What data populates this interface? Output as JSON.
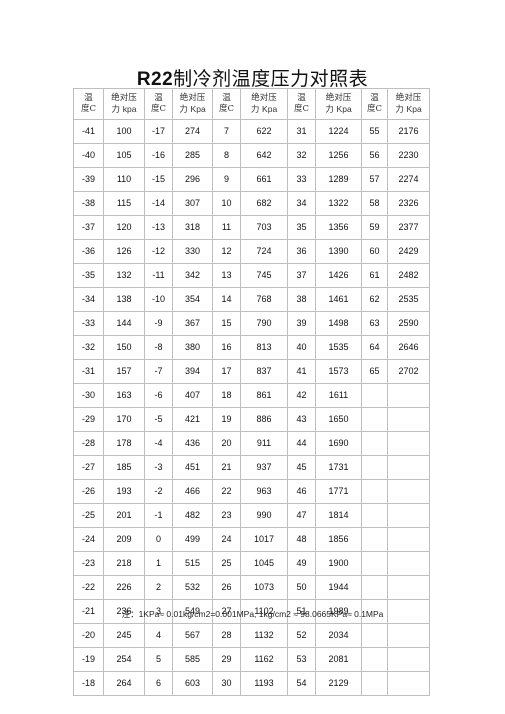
{
  "title_main": "R22",
  "title_rest": "制冷剂温度压力对照表",
  "headers": {
    "temp_l1": "温",
    "temp_l2": "度",
    "temp_unit": "C",
    "press_l1": "绝对压",
    "press_l2": "力",
    "press_unit_lower": "kpa",
    "press_unit": "Kpa"
  },
  "rows": [
    [
      "-41",
      "100",
      "-17",
      "274",
      "7",
      "622",
      "31",
      "1224",
      "55",
      "2176"
    ],
    [
      "-40",
      "105",
      "-16",
      "285",
      "8",
      "642",
      "32",
      "1256",
      "56",
      "2230"
    ],
    [
      "-39",
      "110",
      "-15",
      "296",
      "9",
      "661",
      "33",
      "1289",
      "57",
      "2274"
    ],
    [
      "-38",
      "115",
      "-14",
      "307",
      "10",
      "682",
      "34",
      "1322",
      "58",
      "2326"
    ],
    [
      "-37",
      "120",
      "-13",
      "318",
      "11",
      "703",
      "35",
      "1356",
      "59",
      "2377"
    ],
    [
      "-36",
      "126",
      "-12",
      "330",
      "12",
      "724",
      "36",
      "1390",
      "60",
      "2429"
    ],
    [
      "-35",
      "132",
      "-11",
      "342",
      "13",
      "745",
      "37",
      "1426",
      "61",
      "2482"
    ],
    [
      "-34",
      "138",
      "-10",
      "354",
      "14",
      "768",
      "38",
      "1461",
      "62",
      "2535"
    ],
    [
      "-33",
      "144",
      "-9",
      "367",
      "15",
      "790",
      "39",
      "1498",
      "63",
      "2590"
    ],
    [
      "-32",
      "150",
      "-8",
      "380",
      "16",
      "813",
      "40",
      "1535",
      "64",
      "2646"
    ],
    [
      "-31",
      "157",
      "-7",
      "394",
      "17",
      "837",
      "41",
      "1573",
      "65",
      "2702"
    ],
    [
      "-30",
      "163",
      "-6",
      "407",
      "18",
      "861",
      "42",
      "1611",
      "",
      ""
    ],
    [
      "-29",
      "170",
      "-5",
      "421",
      "19",
      "886",
      "43",
      "1650",
      "",
      ""
    ],
    [
      "-28",
      "178",
      "-4",
      "436",
      "20",
      "911",
      "44",
      "1690",
      "",
      ""
    ],
    [
      "-27",
      "185",
      "-3",
      "451",
      "21",
      "937",
      "45",
      "1731",
      "",
      ""
    ],
    [
      "-26",
      "193",
      "-2",
      "466",
      "22",
      "963",
      "46",
      "1771",
      "",
      ""
    ],
    [
      "-25",
      "201",
      "-1",
      "482",
      "23",
      "990",
      "47",
      "1814",
      "",
      ""
    ],
    [
      "-24",
      "209",
      "0",
      "499",
      "24",
      "1017",
      "48",
      "1856",
      "",
      ""
    ],
    [
      "-23",
      "218",
      "1",
      "515",
      "25",
      "1045",
      "49",
      "1900",
      "",
      ""
    ],
    [
      "-22",
      "226",
      "2",
      "532",
      "26",
      "1073",
      "50",
      "1944",
      "",
      ""
    ],
    [
      "-21",
      "236",
      "3",
      "549",
      "27",
      "1102",
      "51",
      "1989",
      "",
      ""
    ],
    [
      "-20",
      "245",
      "4",
      "567",
      "28",
      "1132",
      "52",
      "2034",
      "",
      ""
    ],
    [
      "-19",
      "254",
      "5",
      "585",
      "29",
      "1162",
      "53",
      "2081",
      "",
      ""
    ],
    [
      "-18",
      "264",
      "6",
      "603",
      "30",
      "1193",
      "54",
      "2129",
      "",
      ""
    ]
  ],
  "note": "注：1KPa≈ 0.01kg/cm2=0.001MPa,   1kg/cm2  ≈ 98.0665KPa≈ 0.1MPa"
}
